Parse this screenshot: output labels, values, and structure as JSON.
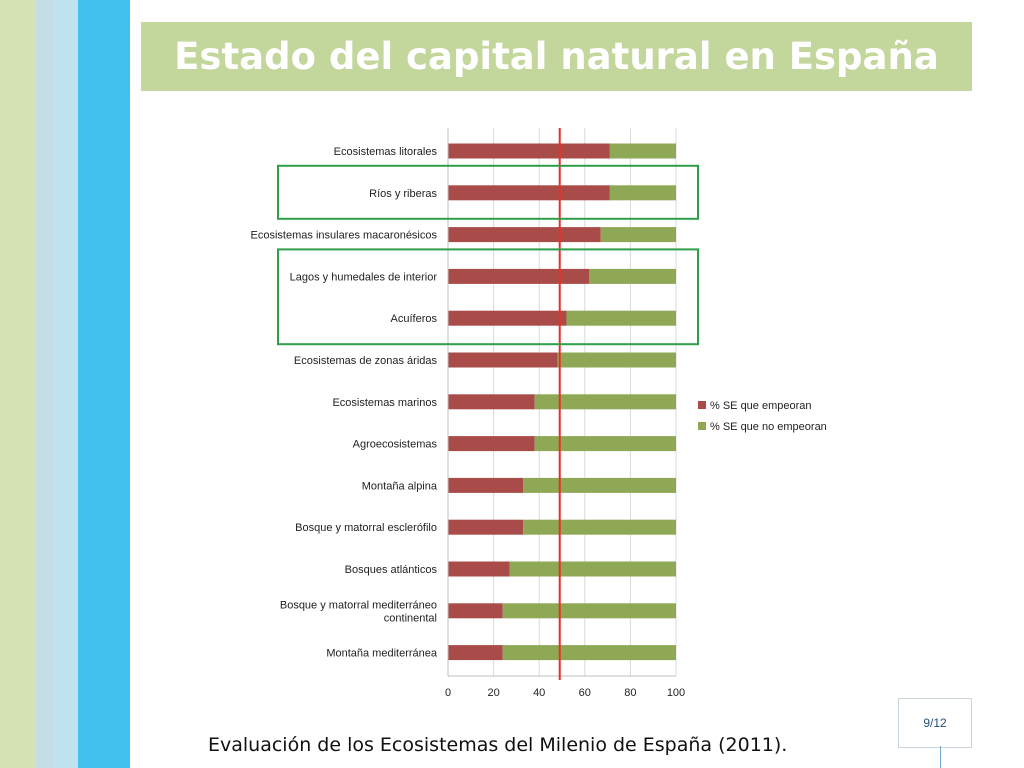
{
  "slide": {
    "title": "Estado del capital natural en España",
    "caption": "Evaluación de los Ecosistemas del Milenio de España (2011).",
    "page_number": "9/12"
  },
  "colors": {
    "empeoran": "#a94c49",
    "no_empeoran": "#8fa855",
    "reference_line": "#e8302a",
    "highlight_box": "#2e9e48",
    "title_bar": "#c3d69b"
  },
  "chart_data": {
    "type": "bar",
    "orientation": "horizontal",
    "stacked": true,
    "categories": [
      "Ecosistemas litorales",
      "Ríos y riberas",
      "Ecosistemas insulares macaronésicos",
      "Lagos y humedales de interior",
      "Acuíferos",
      "Ecosistemas de zonas áridas",
      "Ecosistemas marinos",
      "Agroecosistemas",
      "Montaña alpina",
      "Bosque y matorral esclerófilo",
      "Bosques atlánticos",
      "Bosque y matorral mediterráneo continental",
      "Montaña mediterránea"
    ],
    "category_lines": [
      [
        "Ecosistemas litorales"
      ],
      [
        "Ríos y riberas"
      ],
      [
        "Ecosistemas insulares macaronésicos"
      ],
      [
        "Lagos y humedales de interior"
      ],
      [
        "Acuíferos"
      ],
      [
        "Ecosistemas de zonas áridas"
      ],
      [
        "Ecosistemas marinos"
      ],
      [
        "Agroecosistemas"
      ],
      [
        "Montaña alpina"
      ],
      [
        "Bosque y matorral esclerófilo"
      ],
      [
        "Bosques atlánticos"
      ],
      [
        "Bosque y matorral mediterráneo",
        "continental"
      ],
      [
        "Montaña mediterránea"
      ]
    ],
    "series": [
      {
        "name": "% SE que empeoran",
        "values": [
          71,
          71,
          67,
          62,
          52,
          48,
          38,
          38,
          33,
          33,
          27,
          24,
          24
        ]
      },
      {
        "name": "% SE que no empeoran",
        "values": [
          29,
          29,
          33,
          38,
          48,
          52,
          62,
          62,
          67,
          67,
          73,
          76,
          76
        ]
      }
    ],
    "xlim": [
      0,
      100
    ],
    "xticks": [
      0,
      20,
      40,
      60,
      80,
      100
    ],
    "reference_line": 49,
    "highlighted_groups": [
      [
        1
      ],
      [
        3,
        4
      ]
    ],
    "grid": true,
    "legend": "right"
  }
}
